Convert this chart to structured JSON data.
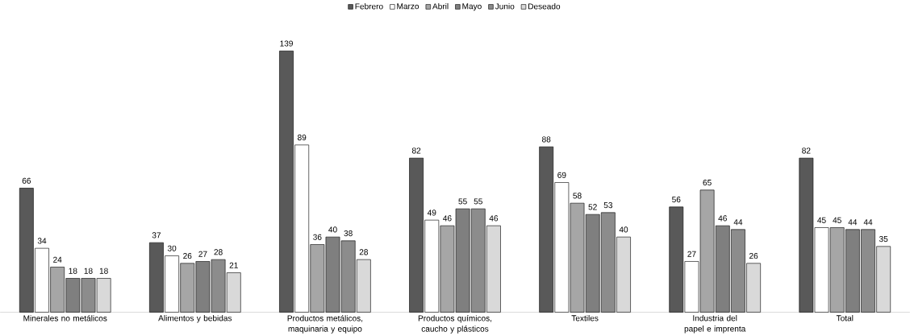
{
  "chart_data": {
    "type": "bar",
    "categories": [
      "Minerales no metálicos",
      "Alimentos y bebidas",
      "Productos metálicos, maquinaria y equipo",
      "Productos químicos, caucho y plásticos",
      "Textiles",
      "Industria del papel e imprenta",
      "Total"
    ],
    "series": [
      {
        "name": "Febrero",
        "color": "#595959",
        "values": [
          66,
          37,
          139,
          82,
          88,
          56,
          82
        ]
      },
      {
        "name": "Marzo",
        "color": "#ffffff",
        "values": [
          34,
          30,
          89,
          49,
          69,
          27,
          45
        ]
      },
      {
        "name": "Abril",
        "color": "#a6a6a6",
        "values": [
          24,
          26,
          36,
          46,
          58,
          65,
          45
        ]
      },
      {
        "name": "Mayo",
        "color": "#7f7f7f",
        "values": [
          18,
          27,
          40,
          55,
          52,
          46,
          44
        ]
      },
      {
        "name": "Junio",
        "color": "#8c8c8c",
        "values": [
          18,
          28,
          38,
          55,
          53,
          44,
          44
        ]
      },
      {
        "name": "Deseado",
        "color": "#d9d9d9",
        "values": [
          18,
          21,
          28,
          46,
          40,
          26,
          35
        ]
      }
    ],
    "data_labels": true,
    "legend": "top"
  }
}
